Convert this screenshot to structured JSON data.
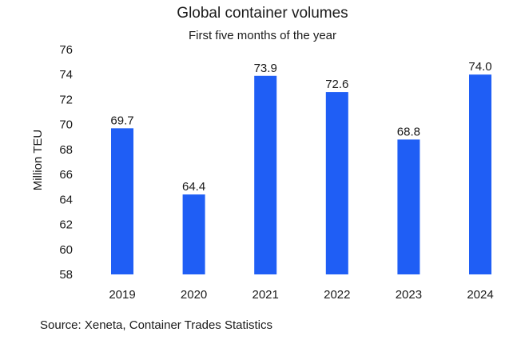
{
  "chart_data": {
    "type": "bar",
    "title": "Global container volumes",
    "subtitle": "First five months of the year",
    "ylabel": "Million TEU",
    "xlabel": "",
    "categories": [
      "2019",
      "2020",
      "2021",
      "2022",
      "2023",
      "2024"
    ],
    "values": [
      69.7,
      64.4,
      73.9,
      72.6,
      68.8,
      74.0
    ],
    "data_labels": [
      "69.7",
      "64.4",
      "73.9",
      "72.6",
      "68.8",
      "74.0"
    ],
    "ylim": [
      58,
      76
    ],
    "yticks": [
      58,
      60,
      62,
      64,
      66,
      68,
      70,
      72,
      74,
      76
    ],
    "bar_color": "#1f5ef5",
    "grid": false,
    "legend": "none"
  },
  "source": "Source: Xeneta, Container Trades Statistics"
}
